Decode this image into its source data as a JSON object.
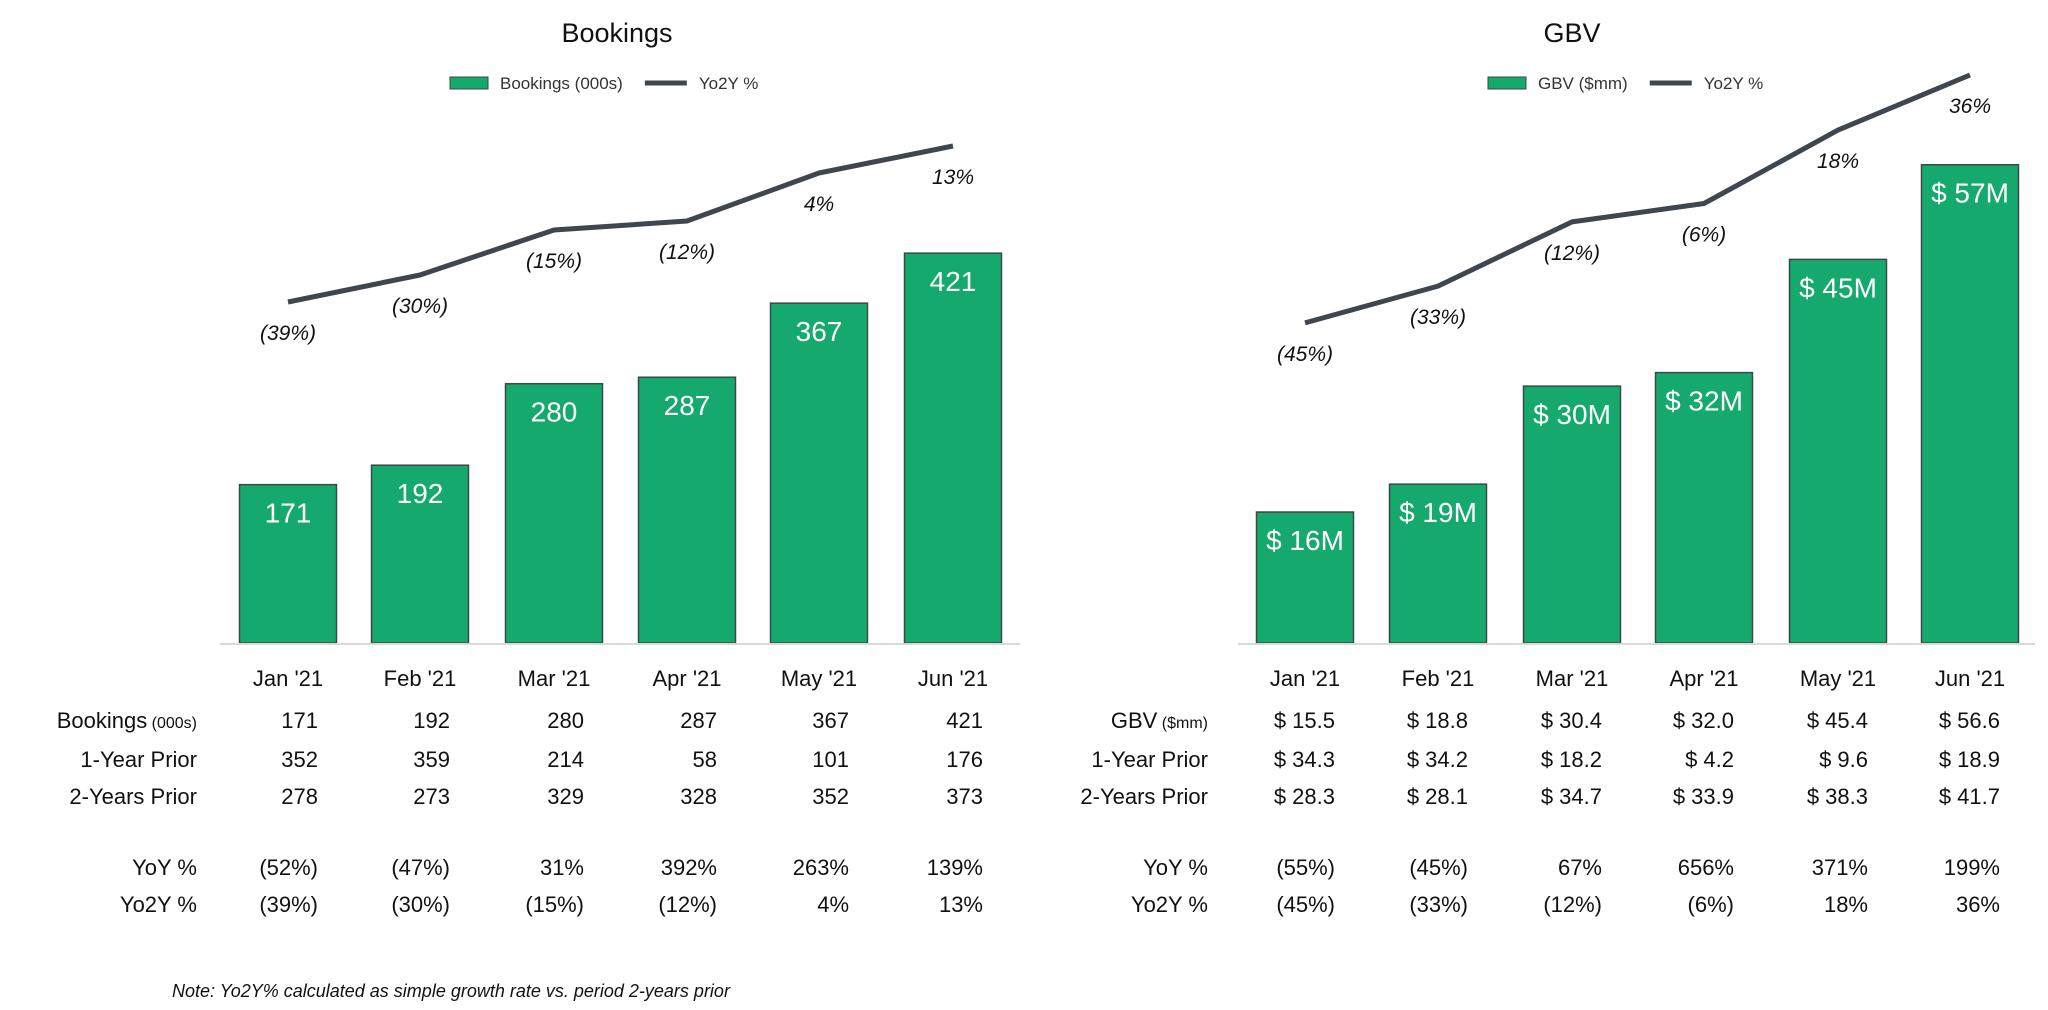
{
  "colors": {
    "bar": "#15A96E",
    "bar_edge": "#3A4A44",
    "line": "#3F464D",
    "axis": "#D9D9D9"
  },
  "chart_data": [
    {
      "type": "bar+line",
      "title": "Bookings",
      "legend": {
        "placement": "top-center",
        "bar_label": "Bookings (000s)",
        "line_label": "Yo2Y %"
      },
      "categories": [
        "Jan '21",
        "Feb '21",
        "Mar '21",
        "Apr '21",
        "May '21",
        "Jun '21"
      ],
      "bar_values": [
        171,
        192,
        280,
        287,
        367,
        421
      ],
      "bar_labels": [
        "171",
        "192",
        "280",
        "287",
        "367",
        "421"
      ],
      "line_values": [
        -39,
        -30,
        -15,
        -12,
        4,
        13
      ],
      "line_labels": [
        "(39%)",
        "(30%)",
        "(15%)",
        "(12%)",
        "4%",
        "13%"
      ],
      "table": {
        "rows": [
          {
            "label": "Bookings",
            "unit": "(000s)",
            "values": [
              "171",
              "192",
              "280",
              "287",
              "367",
              "421"
            ]
          },
          {
            "label": "1-Year Prior",
            "values": [
              "352",
              "359",
              "214",
              "58",
              "101",
              "176"
            ]
          },
          {
            "label": "2-Years Prior",
            "values": [
              "278",
              "273",
              "329",
              "328",
              "352",
              "373"
            ]
          },
          {
            "label": "YoY %",
            "values": [
              "(52%)",
              "(47%)",
              "31%",
              "392%",
              "263%",
              "139%"
            ]
          },
          {
            "label": "Yo2Y %",
            "values": [
              "(39%)",
              "(30%)",
              "(15%)",
              "(12%)",
              "4%",
              "13%"
            ]
          }
        ]
      }
    },
    {
      "type": "bar+line",
      "title": "GBV",
      "legend": {
        "placement": "top-center",
        "bar_label": "GBV ($mm)",
        "line_label": "Yo2Y %"
      },
      "categories": [
        "Jan '21",
        "Feb '21",
        "Mar '21",
        "Apr '21",
        "May '21",
        "Jun '21"
      ],
      "bar_values": [
        15.5,
        18.8,
        30.4,
        32.0,
        45.4,
        56.6
      ],
      "bar_labels": [
        "$ 16M",
        "$ 19M",
        "$ 30M",
        "$ 32M",
        "$ 45M",
        "$ 57M"
      ],
      "line_values": [
        -45,
        -33,
        -12,
        -6,
        18,
        36
      ],
      "line_labels": [
        "(45%)",
        "(33%)",
        "(12%)",
        "(6%)",
        "18%",
        "36%"
      ],
      "table": {
        "rows": [
          {
            "label": "GBV",
            "unit": "($mm)",
            "values": [
              "$ 15.5",
              "$ 18.8",
              "$ 30.4",
              "$ 32.0",
              "$ 45.4",
              "$ 56.6"
            ]
          },
          {
            "label": "1-Year Prior",
            "values": [
              "$ 34.3",
              "$ 34.2",
              "$ 18.2",
              "$ 4.2",
              "$ 9.6",
              "$ 18.9"
            ]
          },
          {
            "label": "2-Years Prior",
            "values": [
              "$ 28.3",
              "$ 28.1",
              "$ 34.7",
              "$ 33.9",
              "$ 38.3",
              "$ 41.7"
            ]
          },
          {
            "label": "YoY %",
            "values": [
              "(55%)",
              "(45%)",
              "67%",
              "656%",
              "371%",
              "199%"
            ]
          },
          {
            "label": "Yo2Y %",
            "values": [
              "(45%)",
              "(33%)",
              "(12%)",
              "(6%)",
              "18%",
              "36%"
            ]
          }
        ]
      }
    }
  ],
  "note": "Note: Yo2Y% calculated as simple growth rate vs. period 2-years prior"
}
